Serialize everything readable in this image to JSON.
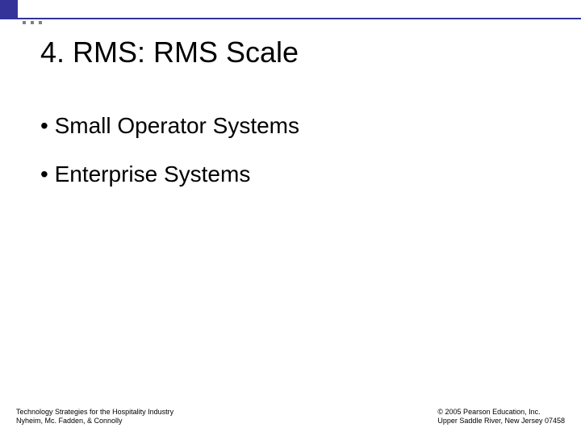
{
  "slide": {
    "title": "4. RMS: RMS Scale",
    "bullets": [
      "• Small Operator Systems",
      "• Enterprise Systems"
    ]
  },
  "footer": {
    "left_line1": "Technology Strategies for the Hospitality Industry",
    "left_line2": "Nyheim, Mc. Fadden, & Connolly",
    "right_line1": "© 2005 Pearson Education, Inc.",
    "right_line2": "Upper Saddle River, New Jersey 07458"
  },
  "style": {
    "accent_color": "#333399",
    "background_color": "#ffffff",
    "title_fontsize": 36,
    "bullet_fontsize": 28,
    "footer_fontsize": 9,
    "dot_color": "#808080"
  }
}
